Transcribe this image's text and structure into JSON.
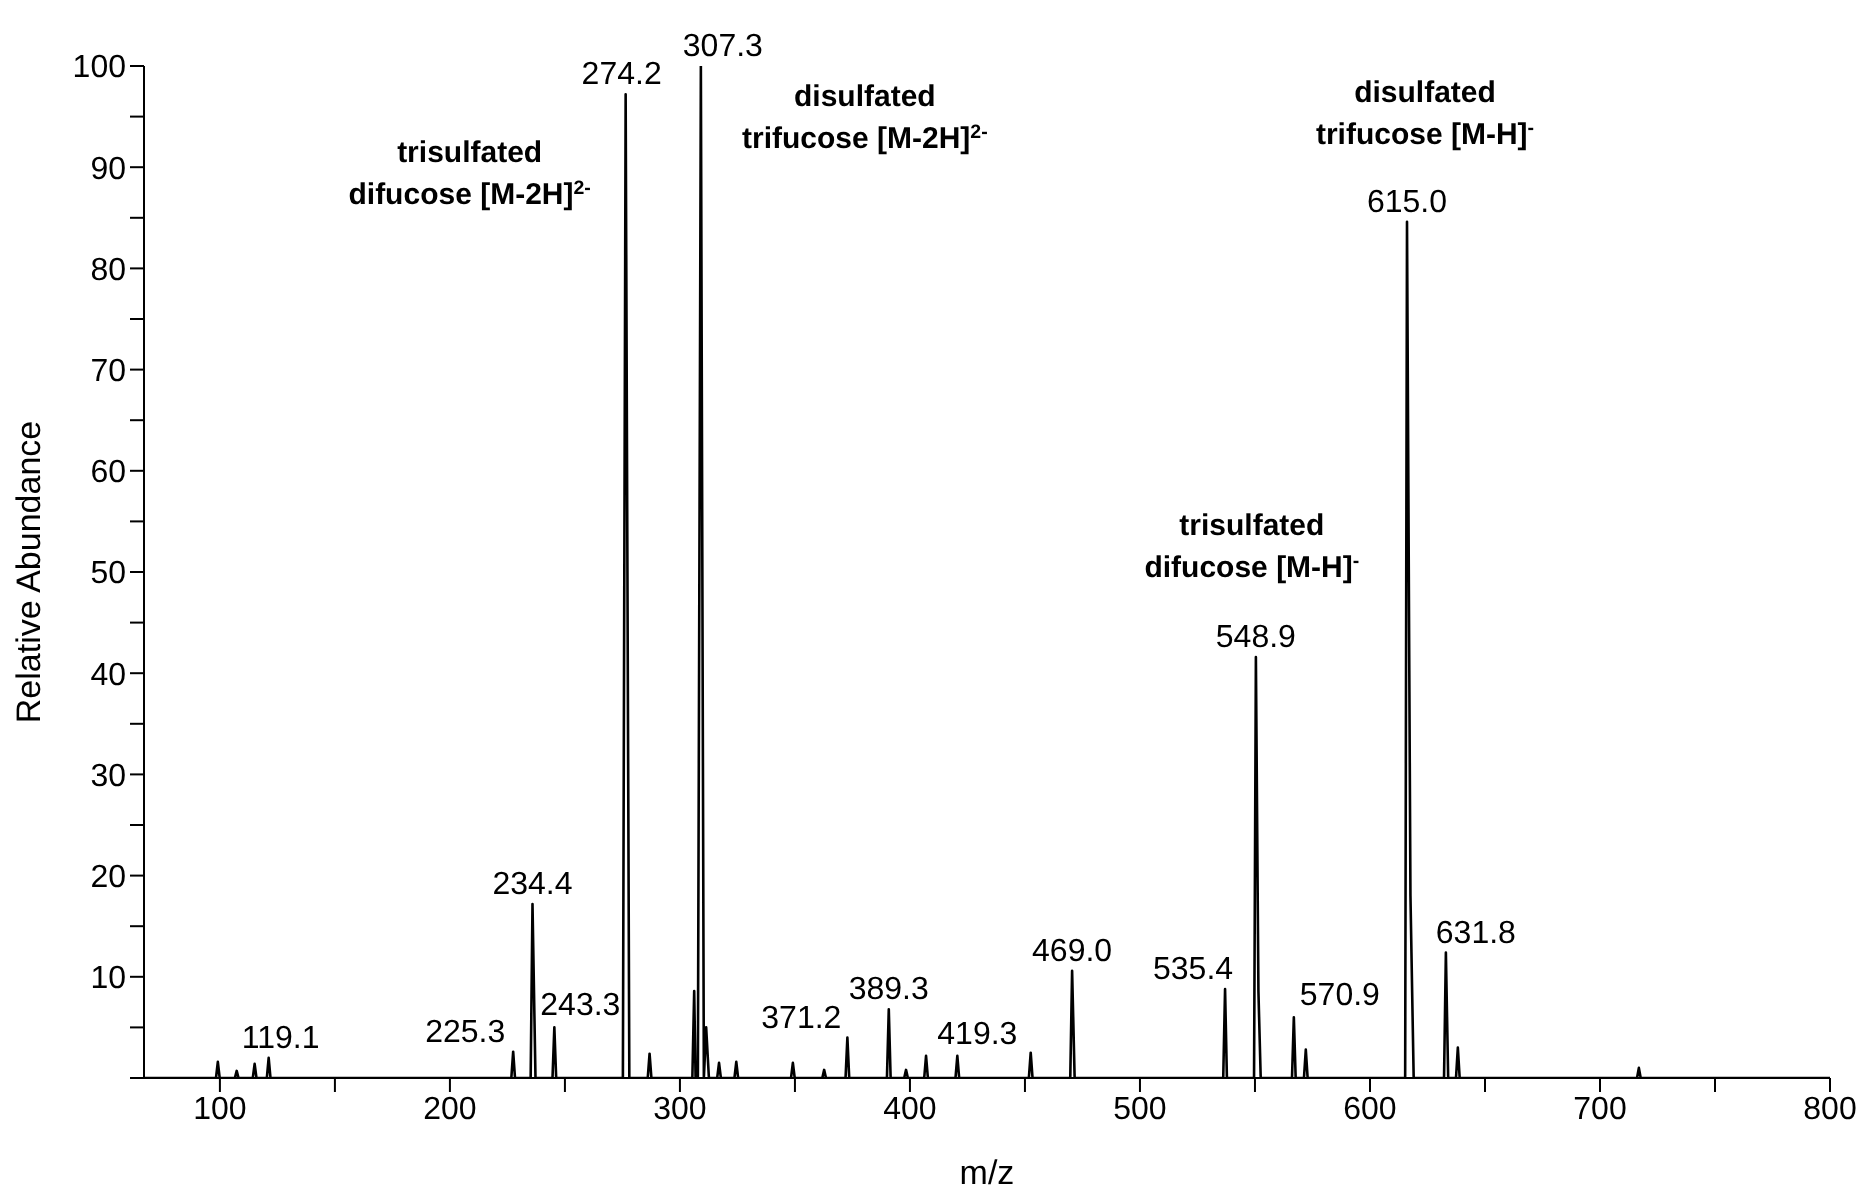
{
  "chart_data": {
    "type": "line",
    "xlabel": "m/z",
    "ylabel": "Relative Abundance",
    "color": "#000000",
    "xlim": [
      67,
      800
    ],
    "ylim": [
      0,
      100
    ],
    "xticks": [
      100,
      {
        "value": 150,
        "label": null
      },
      200,
      {
        "value": 250,
        "label": null
      },
      300,
      {
        "value": 350,
        "label": null
      },
      400,
      {
        "value": 450,
        "label": null
      },
      500,
      {
        "value": 550,
        "label": null
      },
      600,
      {
        "value": 650,
        "label": null
      },
      700,
      {
        "value": 750,
        "label": null
      },
      800
    ],
    "yticks": [
      {
        "value": 0,
        "label": null
      },
      {
        "value": 5,
        "label": null
      },
      10,
      {
        "value": 15,
        "label": null
      },
      20,
      {
        "value": 25,
        "label": null
      },
      30,
      {
        "value": 35,
        "label": null
      },
      40,
      {
        "value": 45,
        "label": null
      },
      50,
      {
        "value": 55,
        "label": null
      },
      60,
      {
        "value": 65,
        "label": null
      },
      70,
      {
        "value": 75,
        "label": null
      },
      80,
      {
        "value": 85,
        "label": null
      },
      90,
      {
        "value": 95,
        "label": null
      },
      100
    ],
    "x": [
      67,
      98.3,
      99.1,
      99.9,
      106.5,
      107.3,
      108.1,
      114.3,
      115.1,
      115.9,
      120.4,
      121.2,
      122,
      226.7,
      227.5,
      228.3,
      235.1,
      235.9,
      237.2,
      244.6,
      245.4,
      246.2,
      275.2,
      276.4,
      278,
      286,
      286.8,
      287.6,
      305.4,
      306.2,
      306.8,
      307.8,
      309.1,
      310.4,
      311.4,
      312.6,
      316.2,
      317,
      317.8,
      323.7,
      324.5,
      325.3,
      348.3,
      349.1,
      349.9,
      361.9,
      362.7,
      363.5,
      372,
      372.8,
      373.6,
      390,
      390.8,
      391.6,
      397.5,
      398.3,
      399.1,
      406.2,
      407,
      407.8,
      419.8,
      420.6,
      421.4,
      451.7,
      452.5,
      453.3,
      469.7,
      470.5,
      471.6,
      536.2,
      537,
      537.8,
      549.6,
      550.4,
      551.5,
      552.5,
      566.1,
      566.9,
      567.7,
      571.3,
      572.1,
      572.9,
      615.3,
      616.1,
      617.6,
      619,
      632.2,
      633,
      634,
      637.4,
      638.2,
      639,
      716.1,
      716.9,
      717.7,
      800
    ],
    "values": [
      0,
      0,
      1.6,
      0,
      0,
      0.7,
      0,
      0,
      1.4,
      0,
      0,
      2,
      0,
      0,
      2.6,
      0,
      0,
      17.2,
      0,
      0,
      5,
      0,
      0,
      97.2,
      0,
      0,
      2.4,
      0,
      0,
      8.6,
      0,
      0,
      100,
      0,
      5,
      0,
      0,
      1.5,
      0,
      0,
      1.6,
      0,
      0,
      1.5,
      0,
      0,
      0.8,
      0,
      0,
      4,
      0,
      0,
      6.8,
      0,
      0,
      0.8,
      0,
      0,
      2.2,
      0,
      0,
      2.2,
      0,
      0,
      2.5,
      0,
      0,
      10.6,
      0,
      0,
      8.8,
      0,
      0,
      41.6,
      8.6,
      0,
      0,
      6,
      0,
      0,
      2.8,
      0,
      0,
      84.6,
      18,
      0,
      0,
      12.4,
      0,
      0,
      3,
      0,
      0,
      1,
      0,
      0
    ],
    "annotations": [
      {
        "text": "119.1",
        "x": 121.2,
        "y": 2
      },
      {
        "text": "225.3",
        "x": 227.5,
        "y": 2.6
      },
      {
        "text": "234.4",
        "x": 235.9,
        "y": 17.2
      },
      {
        "text": "243.3",
        "x": 245.4,
        "y": 5
      },
      {
        "text": "274.2",
        "x": 276.4,
        "y": 97.2
      },
      {
        "text": "307.3",
        "x": 309.1,
        "y": 100
      },
      {
        "text": "371.2",
        "x": 372.8,
        "y": 4
      },
      {
        "text": "389.3",
        "x": 390.8,
        "y": 6.8
      },
      {
        "text": "419.3",
        "x": 420.6,
        "y": 2.2
      },
      {
        "text": "469.0",
        "x": 470.5,
        "y": 10.6
      },
      {
        "text": "535.4",
        "x": 537,
        "y": 8.8
      },
      {
        "text": "548.9",
        "x": 550.4,
        "y": 41.6
      },
      {
        "text": "570.9",
        "x": 566.9,
        "y": 6
      },
      {
        "text": "615.0",
        "x": 616.1,
        "y": 84.6
      },
      {
        "text": "631.8",
        "x": 633,
        "y": 12.4
      },
      {
        "text": "trisulfated\ndifucose [M-2H]$^{2-}$",
        "x": 276.4,
        "y": 97.2
      },
      {
        "text": "disulfated\ntrifucose [M-2H]$^{2-}$",
        "x": 309.1,
        "y": 100
      },
      {
        "text": "disulfated\ntrifucose [M-H]$^{-}$",
        "x": 616.1,
        "y": 84.6
      },
      {
        "text": "trisulfated\ndifucose [M-H]$^{-}$",
        "x": 550.4,
        "y": 41.6
      }
    ]
  }
}
